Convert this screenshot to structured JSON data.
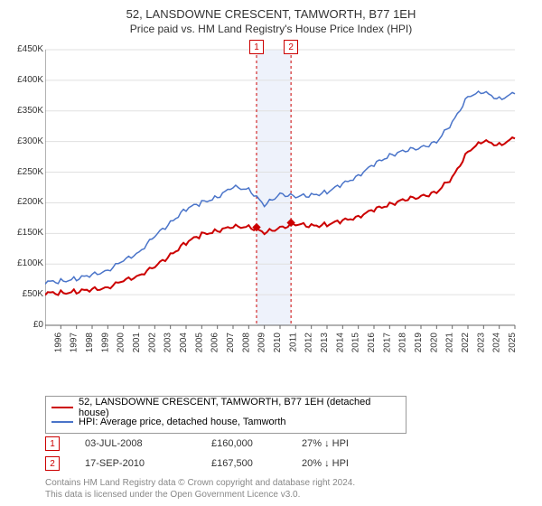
{
  "title": "52, LANSDOWNE CRESCENT, TAMWORTH, B77 1EH",
  "subtitle": "Price paid vs. HM Land Registry's House Price Index (HPI)",
  "chart": {
    "type": "line",
    "background_color": "#ffffff",
    "grid_color": "#e0e0e0",
    "axis_color": "#666666",
    "tick_fontsize": 10,
    "ylim": [
      0,
      450000
    ],
    "ytick_step": 50000,
    "ytick_labels": [
      "£0",
      "£50K",
      "£100K",
      "£150K",
      "£200K",
      "£250K",
      "£300K",
      "£350K",
      "£400K",
      "£450K"
    ],
    "x_years": [
      1995,
      1996,
      1997,
      1998,
      1999,
      2000,
      2001,
      2002,
      2003,
      2004,
      2005,
      2006,
      2007,
      2008,
      2009,
      2010,
      2011,
      2012,
      2013,
      2014,
      2015,
      2016,
      2017,
      2018,
      2019,
      2020,
      2021,
      2022,
      2023,
      2024,
      2025
    ],
    "series": [
      {
        "name": "price_paid",
        "color": "#cc0000",
        "width": 2,
        "values": [
          52000,
          53000,
          55000,
          58000,
          62000,
          72000,
          82000,
          95000,
          115000,
          135000,
          148000,
          155000,
          160000,
          162000,
          150000,
          160000,
          165000,
          162000,
          165000,
          170000,
          178000,
          188000,
          198000,
          205000,
          210000,
          218000,
          240000,
          285000,
          300000,
          295000,
          305000
        ]
      },
      {
        "name": "hpi",
        "color": "#4a74c9",
        "width": 1.5,
        "values": [
          70000,
          72000,
          76000,
          82000,
          90000,
          105000,
          120000,
          145000,
          168000,
          190000,
          200000,
          210000,
          225000,
          223000,
          195000,
          215000,
          210000,
          212000,
          218000,
          230000,
          245000,
          262000,
          278000,
          285000,
          290000,
          300000,
          330000,
          375000,
          380000,
          370000,
          378000
        ]
      }
    ],
    "sale_markers": [
      {
        "label": "1",
        "year": 2008.5,
        "value": 160000
      },
      {
        "label": "2",
        "year": 2010.7,
        "value": 167500
      }
    ],
    "shade_band": {
      "from_year": 2008.5,
      "to_year": 2010.7,
      "fill": "#eef2fb"
    },
    "dash_lines": [
      {
        "year": 2008.5,
        "color": "#cc0000"
      },
      {
        "year": 2010.7,
        "color": "#cc0000"
      }
    ]
  },
  "legend": {
    "items": [
      {
        "color": "#cc0000",
        "label": "52, LANSDOWNE CRESCENT, TAMWORTH, B77 1EH (detached house)"
      },
      {
        "color": "#4a74c9",
        "label": "HPI: Average price, detached house, Tamworth"
      }
    ]
  },
  "sales": [
    {
      "badge": "1",
      "date": "03-JUL-2008",
      "price": "£160,000",
      "pct": "27% ↓ HPI"
    },
    {
      "badge": "2",
      "date": "17-SEP-2010",
      "price": "£167,500",
      "pct": "20% ↓ HPI"
    }
  ],
  "attribution_line1": "Contains HM Land Registry data © Crown copyright and database right 2024.",
  "attribution_line2": "This data is licensed under the Open Government Licence v3.0."
}
